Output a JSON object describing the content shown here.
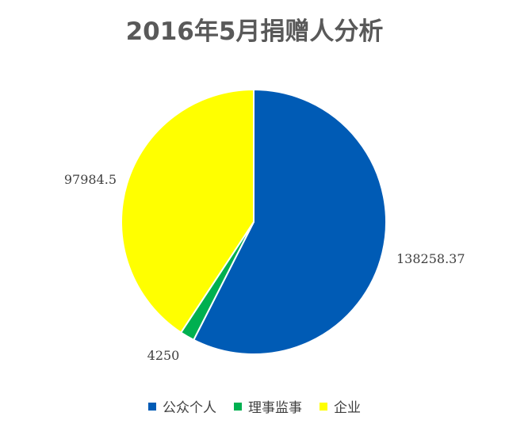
{
  "chart_data": {
    "type": "pie",
    "title": "2016年5月捐赠人分析",
    "categories": [
      "公众个人",
      "理事监事",
      "企业"
    ],
    "values": [
      138258.37,
      4250,
      97984.5
    ],
    "data_labels": [
      "138258.37",
      "4250",
      "97984.5"
    ],
    "colors": [
      "#005BB5",
      "#00B050",
      "#FFFF00"
    ],
    "start_angle_deg": 0,
    "direction": "clockwise",
    "legend_position": "bottom"
  }
}
